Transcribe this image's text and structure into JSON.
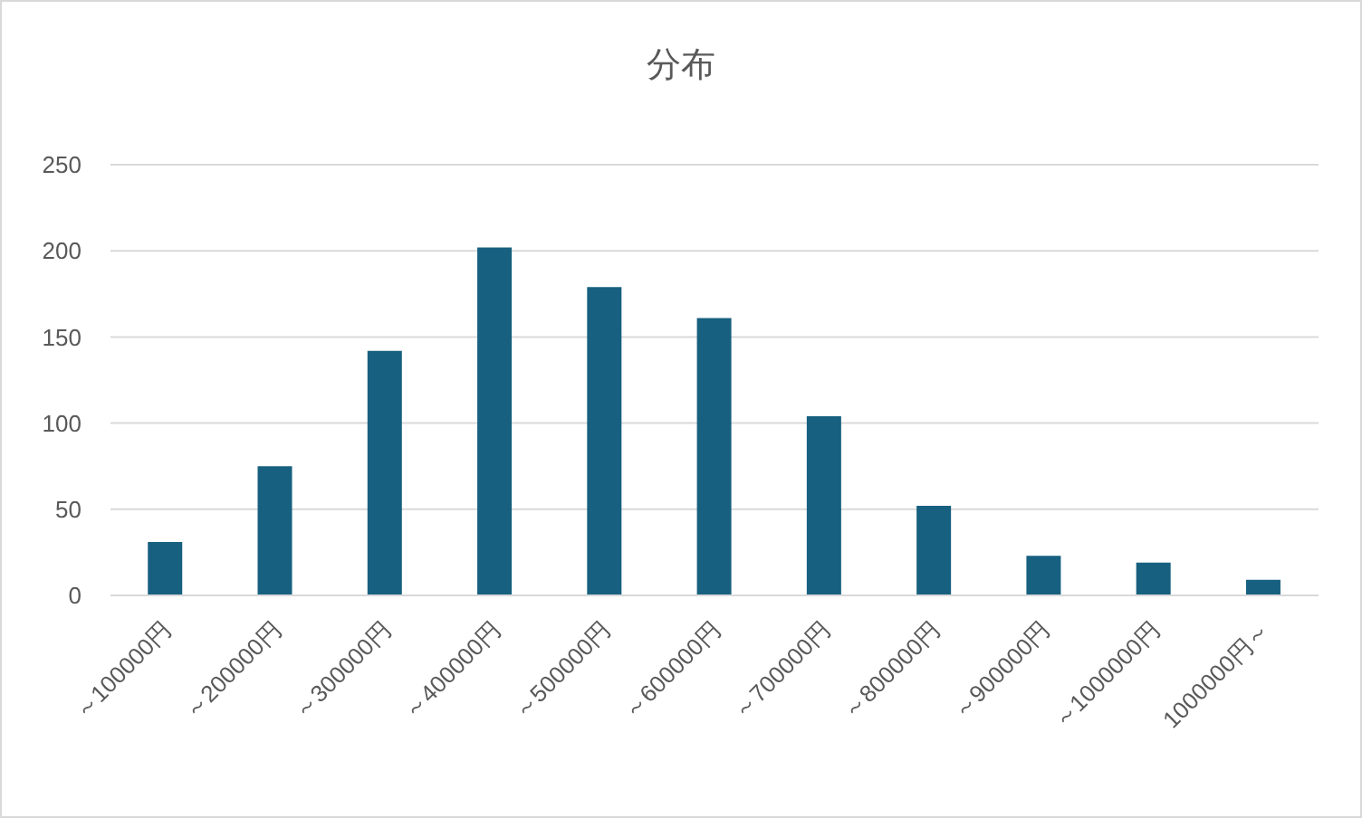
{
  "chart_data": {
    "type": "bar",
    "title": "分布",
    "categories": [
      "～100000円",
      "～200000円",
      "～300000円",
      "～400000円",
      "～500000円",
      "～600000円",
      "～700000円",
      "～800000円",
      "～900000円",
      "～1000000円",
      "1000000円～"
    ],
    "values": [
      31,
      75,
      142,
      202,
      179,
      161,
      104,
      52,
      23,
      19,
      9
    ],
    "color": "#17607f",
    "ylim": [
      0,
      250
    ],
    "yticks": [
      0,
      50,
      100,
      150,
      200,
      250
    ],
    "grid": "y"
  }
}
